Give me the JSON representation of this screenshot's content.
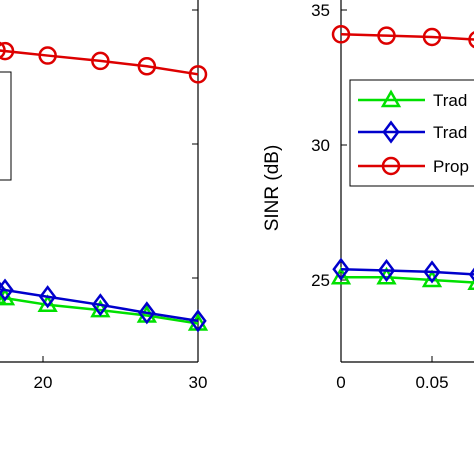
{
  "chart_data": [
    {
      "type": "line",
      "xlabel": "",
      "ylabel": "",
      "x_ticks": [
        "20",
        "30"
      ],
      "y_ticks": [],
      "xlim": [
        10,
        30
      ],
      "ylim": [
        22,
        35
      ],
      "grid": false,
      "legend": "",
      "series": [
        {
          "marker": "triangle",
          "color": "#00e000",
          "x": [
            17,
            20.3,
            23.7,
            26.7,
            30
          ],
          "y": [
            24.3,
            24.0,
            23.8,
            23.6,
            23.3
          ]
        },
        {
          "marker": "diamond",
          "color": "#0000cc",
          "x": [
            17,
            20.3,
            23.7,
            26.7,
            30
          ],
          "y": [
            24.6,
            24.3,
            24.0,
            23.7,
            23.4
          ]
        },
        {
          "marker": "circle",
          "color": "#dd0000",
          "x": [
            17,
            20.3,
            23.7,
            26.7,
            30
          ],
          "y": [
            33.5,
            33.3,
            33.1,
            32.9,
            32.6
          ]
        }
      ]
    },
    {
      "type": "line",
      "xlabel": "",
      "ylabel": "SINR (dB)",
      "x_ticks": [
        "0",
        "0.05"
      ],
      "y_ticks": [
        "25",
        "30",
        "35"
      ],
      "xlim": [
        0,
        0.1
      ],
      "ylim": [
        22.5,
        35
      ],
      "grid": false,
      "legend": "top-right",
      "series": [
        {
          "name": "Trad",
          "marker": "triangle",
          "color": "#00e000",
          "x": [
            0,
            0.025,
            0.05,
            0.075
          ],
          "y": [
            25.1,
            25.1,
            25.0,
            24.9
          ]
        },
        {
          "name": "Trad",
          "marker": "diamond",
          "color": "#0000cc",
          "x": [
            0,
            0.025,
            0.05,
            0.075
          ],
          "y": [
            25.4,
            25.35,
            25.3,
            25.2
          ]
        },
        {
          "name": "Prop",
          "marker": "circle",
          "color": "#dd0000",
          "x": [
            0,
            0.025,
            0.05,
            0.075
          ],
          "y": [
            34.1,
            34.05,
            34.0,
            33.9
          ]
        }
      ]
    }
  ]
}
